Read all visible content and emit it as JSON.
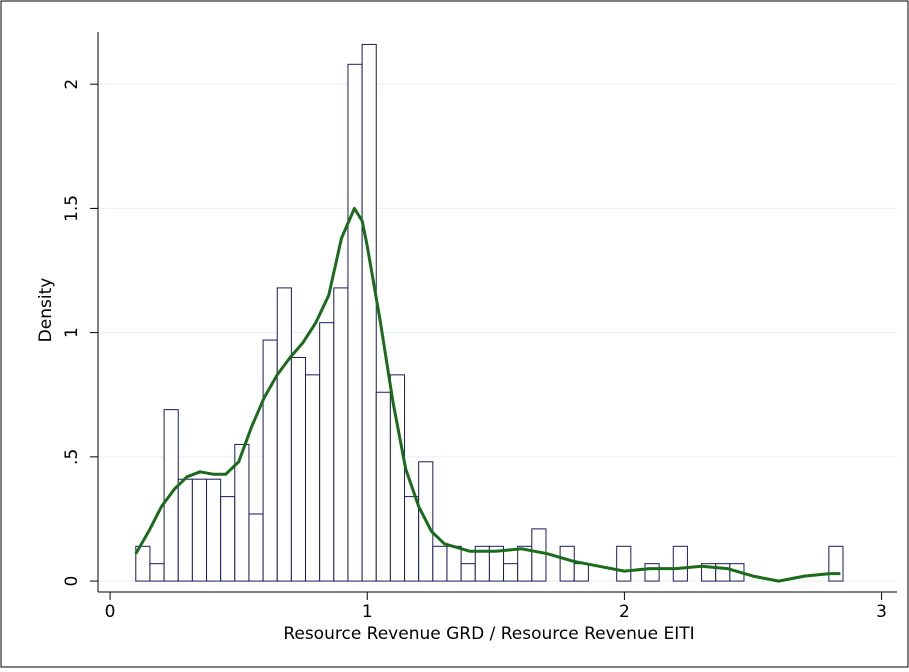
{
  "chart_data": {
    "type": "histogram",
    "xlabel": "Resource Revenue GRD / Resource Revenue EITI",
    "ylabel": "Density",
    "bins": [
      0.1,
      0.155,
      0.21,
      0.265,
      0.32,
      0.375,
      0.43,
      0.485,
      0.54,
      0.595,
      0.65,
      0.705,
      0.76,
      0.815,
      0.87,
      0.925,
      0.98,
      1.035,
      1.09,
      1.145,
      1.2,
      1.255,
      1.31,
      1.365,
      1.42,
      1.475,
      1.53,
      1.585,
      1.64,
      1.695,
      1.75,
      1.805,
      1.86,
      1.915,
      1.97,
      2.025,
      2.08,
      2.135,
      2.19,
      2.245,
      2.3,
      2.355,
      2.41,
      2.465,
      2.52,
      2.575,
      2.63,
      2.685,
      2.74,
      2.795,
      2.85
    ],
    "values": [
      0.14,
      0.07,
      0.69,
      0.41,
      0.41,
      0.41,
      0.34,
      0.55,
      0.27,
      0.97,
      1.18,
      0.9,
      0.83,
      1.04,
      1.18,
      2.08,
      2.16,
      0.76,
      0.83,
      0.34,
      0.48,
      0.14,
      0.14,
      0.07,
      0.14,
      0.14,
      0.07,
      0.14,
      0.21,
      0,
      0.14,
      0.07,
      0,
      0,
      0.14,
      0,
      0.07,
      0,
      0.14,
      0,
      0.07,
      0.07,
      0.07,
      0,
      0,
      0,
      0,
      0,
      0,
      0.14
    ],
    "color": "#1a1a5e",
    "kde": {
      "x": [
        0.1,
        0.15,
        0.2,
        0.25,
        0.3,
        0.35,
        0.4,
        0.45,
        0.5,
        0.55,
        0.6,
        0.65,
        0.7,
        0.75,
        0.8,
        0.85,
        0.9,
        0.95,
        0.98,
        1.0,
        1.05,
        1.1,
        1.15,
        1.2,
        1.25,
        1.3,
        1.4,
        1.5,
        1.6,
        1.7,
        1.8,
        1.9,
        2.0,
        2.1,
        2.2,
        2.3,
        2.4,
        2.5,
        2.6,
        2.7,
        2.8,
        2.84
      ],
      "values": [
        0.11,
        0.2,
        0.3,
        0.37,
        0.42,
        0.44,
        0.43,
        0.43,
        0.48,
        0.62,
        0.74,
        0.83,
        0.9,
        0.96,
        1.04,
        1.15,
        1.38,
        1.5,
        1.45,
        1.35,
        1.05,
        0.72,
        0.45,
        0.3,
        0.2,
        0.15,
        0.12,
        0.12,
        0.13,
        0.11,
        0.08,
        0.06,
        0.04,
        0.05,
        0.05,
        0.06,
        0.05,
        0.02,
        0,
        0.02,
        0.03,
        0.03
      ],
      "color": "#1a6b1a"
    },
    "xlim": [
      -0.047,
      3.06
    ],
    "ylim": [
      -0.044,
      2.21
    ],
    "xticks": [
      0,
      1,
      2,
      3
    ],
    "yticks": [
      0,
      {
        "value": 0.5,
        "label": ".5"
      },
      1,
      1.5,
      2
    ],
    "grid": true
  }
}
